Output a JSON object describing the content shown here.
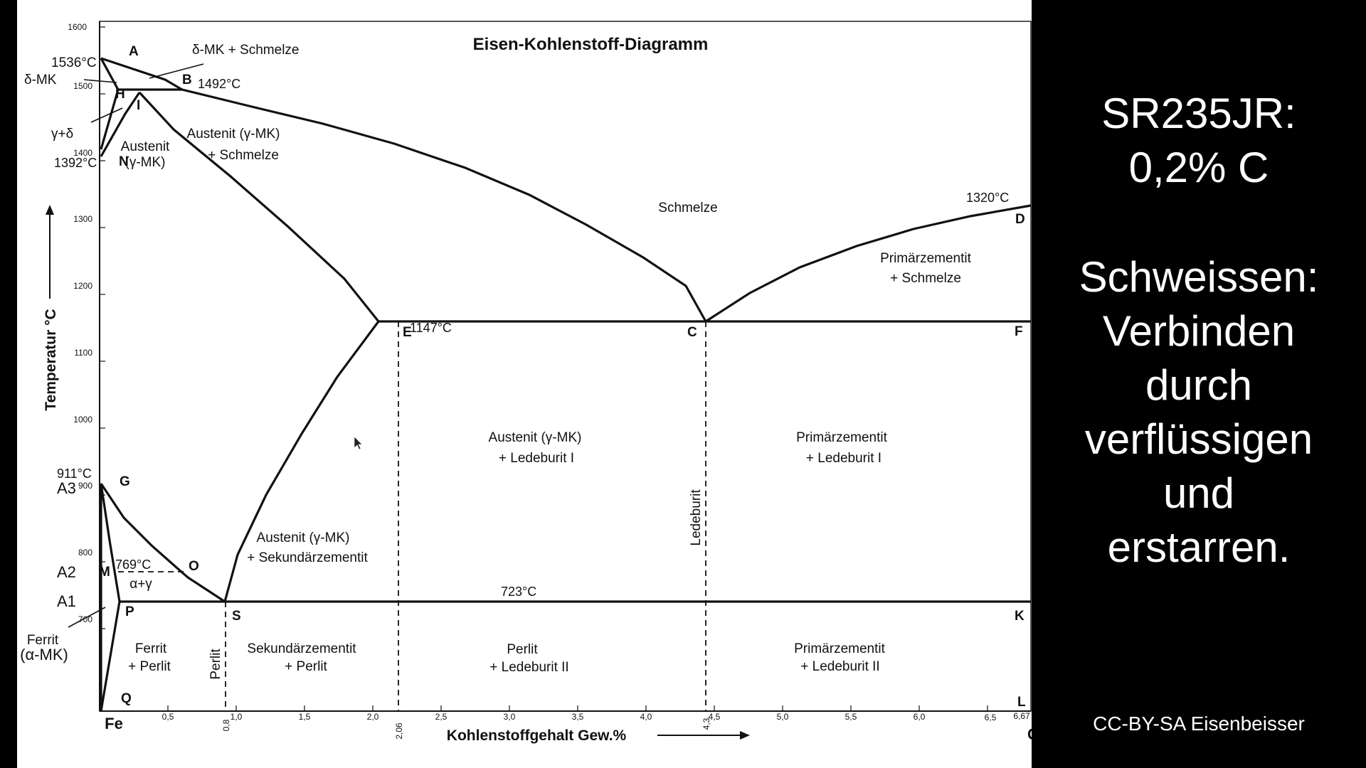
{
  "diagram": {
    "title": "Eisen-Kohlenstoff-Diagramm",
    "y_axis_label": "Temperatur °C",
    "x_axis_label": "Kohlenstoffgehalt Gew.%",
    "y_ticks": [
      "1600",
      "1500",
      "1400",
      "1300",
      "1200",
      "1100",
      "1000",
      "900",
      "800",
      "700"
    ],
    "x_ticks": [
      "0,5",
      "1,0",
      "1,5",
      "2,0",
      "2,5",
      "3,0",
      "3,5",
      "4,0",
      "4,5",
      "5,0",
      "5,5",
      "6,0",
      "6,5",
      "6,67"
    ],
    "x_ticks_rotated": [
      "0,8",
      "2,06",
      "4,3"
    ],
    "axis_end_left": "Fe",
    "axis_end_right": "C",
    "points": {
      "A": "A",
      "B": "B",
      "H": "H",
      "I": "I",
      "N": "N",
      "E": "E",
      "C": "C",
      "D": "D",
      "F": "F",
      "G": "G",
      "O": "O",
      "M": "M",
      "P": "P",
      "S": "S",
      "K": "K",
      "Q": "Q",
      "L": "L"
    },
    "temps": {
      "t1536": "1536°C",
      "t1492": "1492°C",
      "t1392": "1392°C",
      "t1147": "1147°C",
      "t1320": "1320°C",
      "t911": "911°C",
      "t769": "769°C",
      "t723": "723°C"
    },
    "markers": {
      "a3": "A3",
      "a2": "A2",
      "a1": "A1"
    },
    "regions": {
      "delta_schmelze": "δ-MK + Schmelze",
      "delta_mk": "δ-MK",
      "gamma_delta": "γ+δ",
      "austenit_1": "Austenit",
      "austenit_2": "(γ-MK)",
      "aus_schm_1": "Austenit (γ-MK)",
      "aus_schm_2": "+ Schmelze",
      "schmelze": "Schmelze",
      "prim_schm_1": "Primärzementit",
      "prim_schm_2": "+ Schmelze",
      "aus_led_1": "Austenit (γ-MK)",
      "aus_led_2": "+ Ledeburit I",
      "prim_led1_1": "Primärzementit",
      "prim_led1_2": "+ Ledeburit I",
      "ledeburit": "Ledeburit",
      "aus_sek_1": "Austenit (γ-MK)",
      "aus_sek_2": "+ Sekundärzementit",
      "alpha_gamma": "α+γ",
      "ferrit_1": "Ferrit",
      "ferrit_2": "(α-MK)",
      "ferrit_perlit_1": "Ferrit",
      "ferrit_perlit_2": "+ Perlit",
      "perlit": "Perlit",
      "sek_perlit_1": "Sekundärzementit",
      "sek_perlit_2": "+ Perlit",
      "perlit_led2_1": "Perlit",
      "perlit_led2_2": "+ Ledeburit II",
      "prim_led2_1": "Primärzementit",
      "prim_led2_2": "+ Ledeburit II"
    }
  },
  "side": {
    "title": "SR235JR:\n0,2% C",
    "text": "Schweissen:\nVerbinden\ndurch\nverflüssigen\nund\nerstarren.",
    "credit": "CC-BY-SA Eisenbeisser"
  },
  "colors": {
    "background": "#000000",
    "panel_text": "#ffffff",
    "diagram_bg": "#ffffff",
    "lines": "#111111"
  }
}
